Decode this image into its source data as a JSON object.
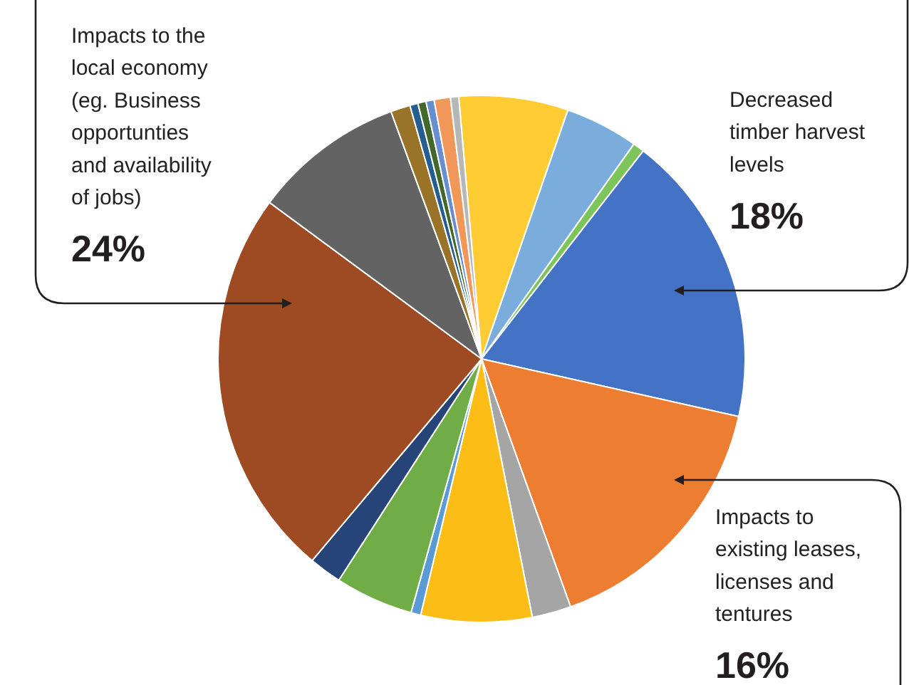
{
  "chart_data": {
    "type": "pie",
    "categories": [
      null,
      null,
      null,
      "Decreased timber harvest levels",
      "Impacts to existing leases, licenses and tentures",
      null,
      null,
      null,
      null,
      null,
      "Impacts to the local economy (eg. Business opportunties and availability of jobs)",
      null,
      null,
      null,
      null,
      null,
      null,
      null
    ],
    "values": [
      6.7,
      4.5,
      0.7,
      18,
      16,
      2.4,
      6.8,
      0.6,
      4.8,
      2,
      24,
      9.3,
      1.2,
      0.5,
      0.5,
      0.5,
      1.0,
      0.5
    ],
    "value_labels": [
      null,
      null,
      null,
      "18%",
      "16%",
      null,
      null,
      null,
      null,
      null,
      "24%",
      null,
      null,
      null,
      null,
      null,
      null,
      null
    ],
    "colors": [
      "#ffcd33",
      "#7aaddc",
      "#7dc45b",
      "#4472c4",
      "#ed7d31",
      "#a5a5a5",
      "#fbbd16",
      "#5b9bd5",
      "#70ad47",
      "#264478",
      "#9e4a22",
      "#636363",
      "#997328",
      "#255e91",
      "#43682b",
      "#698ed0",
      "#f1975a",
      "#b7b7b7"
    ]
  }
}
